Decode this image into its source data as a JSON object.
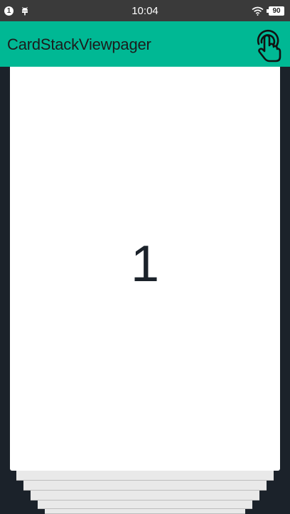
{
  "status_bar": {
    "notification_count": "1",
    "time": "10:04",
    "battery_level": "90",
    "icons": [
      "notification-badge",
      "android-icon",
      "wifi-icon",
      "battery-icon"
    ]
  },
  "app_bar": {
    "title": "CardStackViewpager",
    "action_icon": "touch-gesture-icon",
    "background_color": "#00b894"
  },
  "card_stack": {
    "current_card_label": "1",
    "card_color": "#ffffff",
    "stack_background": "#1b222a"
  }
}
